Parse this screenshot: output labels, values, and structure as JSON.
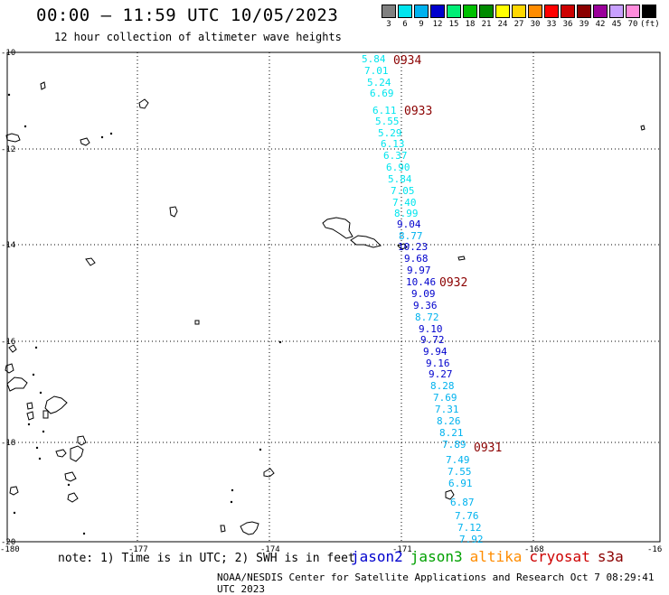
{
  "header": {
    "title": "00:00 – 11:59 UTC 10/05/2023",
    "subtitle": "12 hour collection of altimeter wave heights"
  },
  "legend": {
    "unit": "(ft)",
    "items": [
      {
        "label": "3",
        "color": "#808080"
      },
      {
        "label": "6",
        "color": "#00e5ee"
      },
      {
        "label": "9",
        "color": "#00b2ee"
      },
      {
        "label": "12",
        "color": "#0000cd"
      },
      {
        "label": "15",
        "color": "#00ee76"
      },
      {
        "label": "18",
        "color": "#00c000"
      },
      {
        "label": "21",
        "color": "#008b00"
      },
      {
        "label": "24",
        "color": "#ffff00"
      },
      {
        "label": "27",
        "color": "#ffd700"
      },
      {
        "label": "30",
        "color": "#ff8c00"
      },
      {
        "label": "33",
        "color": "#ff0000"
      },
      {
        "label": "36",
        "color": "#cd0000"
      },
      {
        "label": "39",
        "color": "#8b0000"
      },
      {
        "label": "42",
        "color": "#9a009a"
      },
      {
        "label": "45",
        "color": "#c8a0ff"
      },
      {
        "label": "70",
        "color": "#ff8cdc"
      },
      {
        "label": "",
        "color": "#000000"
      }
    ]
  },
  "map": {
    "lat_range": [
      -20,
      -10
    ],
    "lon_range": [
      -180,
      -165
    ],
    "y_ticks": [
      "-10",
      "-12",
      "-14",
      "-16",
      "-18",
      "-20"
    ],
    "x_ticks": [
      "-180",
      "-177",
      "-174",
      "-171",
      "-168",
      "-16"
    ],
    "track_times": [
      "0934",
      "0933",
      "0932",
      "0931"
    ],
    "wave_heights": [
      {
        "v": "5.84",
        "c": "#00e5ee"
      },
      {
        "v": "7.01",
        "c": "#00e5ee"
      },
      {
        "v": "5.24",
        "c": "#00e5ee"
      },
      {
        "v": "6.69",
        "c": "#00e5ee"
      },
      {
        "v": "6.11",
        "c": "#00e5ee"
      },
      {
        "v": "5.55",
        "c": "#00e5ee"
      },
      {
        "v": "5.29",
        "c": "#00e5ee"
      },
      {
        "v": "6.13",
        "c": "#00e5ee"
      },
      {
        "v": "6.37",
        "c": "#00e5ee"
      },
      {
        "v": "6.90",
        "c": "#00e5ee"
      },
      {
        "v": "5.84",
        "c": "#00e5ee"
      },
      {
        "v": "7.05",
        "c": "#00e5ee"
      },
      {
        "v": "7.40",
        "c": "#00e5ee"
      },
      {
        "v": "8.99",
        "c": "#00e5ee"
      },
      {
        "v": "9.04",
        "c": "#0000cd"
      },
      {
        "v": "8.77",
        "c": "#00b2ee"
      },
      {
        "v": "10.23",
        "c": "#0000cd"
      },
      {
        "v": "9.68",
        "c": "#0000cd"
      },
      {
        "v": "9.97",
        "c": "#0000cd"
      },
      {
        "v": "10.46",
        "c": "#0000cd"
      },
      {
        "v": "9.09",
        "c": "#0000cd"
      },
      {
        "v": "9.36",
        "c": "#0000cd"
      },
      {
        "v": "8.72",
        "c": "#00b2ee"
      },
      {
        "v": "9.10",
        "c": "#0000cd"
      },
      {
        "v": "9.72",
        "c": "#0000cd"
      },
      {
        "v": "9.94",
        "c": "#0000cd"
      },
      {
        "v": "9.16",
        "c": "#0000cd"
      },
      {
        "v": "9.27",
        "c": "#0000cd"
      },
      {
        "v": "8.28",
        "c": "#00b2ee"
      },
      {
        "v": "7.69",
        "c": "#00b2ee"
      },
      {
        "v": "7.31",
        "c": "#00b2ee"
      },
      {
        "v": "8.26",
        "c": "#00b2ee"
      },
      {
        "v": "8.21",
        "c": "#00b2ee"
      },
      {
        "v": "7.89",
        "c": "#00b2ee"
      },
      {
        "v": "7.49",
        "c": "#00b2ee"
      },
      {
        "v": "7.55",
        "c": "#00b2ee"
      },
      {
        "v": "6.91",
        "c": "#00b2ee"
      },
      {
        "v": "6.87",
        "c": "#00b2ee"
      },
      {
        "v": "7.76",
        "c": "#00b2ee"
      },
      {
        "v": "7.12",
        "c": "#00b2ee"
      },
      {
        "v": "7.92",
        "c": "#00b2ee"
      }
    ]
  },
  "footer": {
    "note": "note: 1) Time is in UTC; 2) SWH is in feet",
    "satellites": [
      {
        "name": "jason2",
        "color": "#0000cd"
      },
      {
        "name": "jason3",
        "color": "#00a000"
      },
      {
        "name": "altika",
        "color": "#ff8c00"
      },
      {
        "name": "cryosat",
        "color": "#cd0000"
      },
      {
        "name": "s3a",
        "color": "#8b0000"
      }
    ],
    "credit": "NOAA/NESDIS Center for Satellite Applications and Research    Oct  7 08:29:41 UTC 2023"
  }
}
